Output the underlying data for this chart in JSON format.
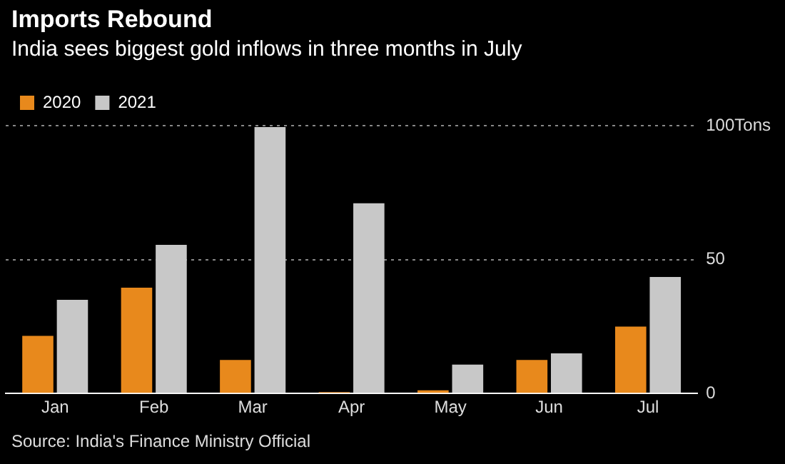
{
  "chart_data": {
    "type": "bar",
    "title": "Imports Rebound",
    "subtitle": "India sees biggest gold inflows in three months in July",
    "categories": [
      "Jan",
      "Feb",
      "Mar",
      "Apr",
      "May",
      "Jun",
      "Jul"
    ],
    "series": [
      {
        "name": "2020",
        "color": "#e8891c",
        "values": [
          21.5,
          39.5,
          12.5,
          0.5,
          1.2,
          12.5,
          25
        ]
      },
      {
        "name": "2021",
        "color": "#c8c8c8",
        "values": [
          35,
          55.5,
          99.5,
          71,
          10.8,
          15,
          43.5
        ]
      }
    ],
    "ylim": [
      0,
      100
    ],
    "yticks": [
      0,
      50,
      {
        "value": 100,
        "label": "100Tons"
      }
    ],
    "grid": "y",
    "legend": "top left",
    "annotations": [
      "Source: India's Finance Ministry Official"
    ]
  }
}
